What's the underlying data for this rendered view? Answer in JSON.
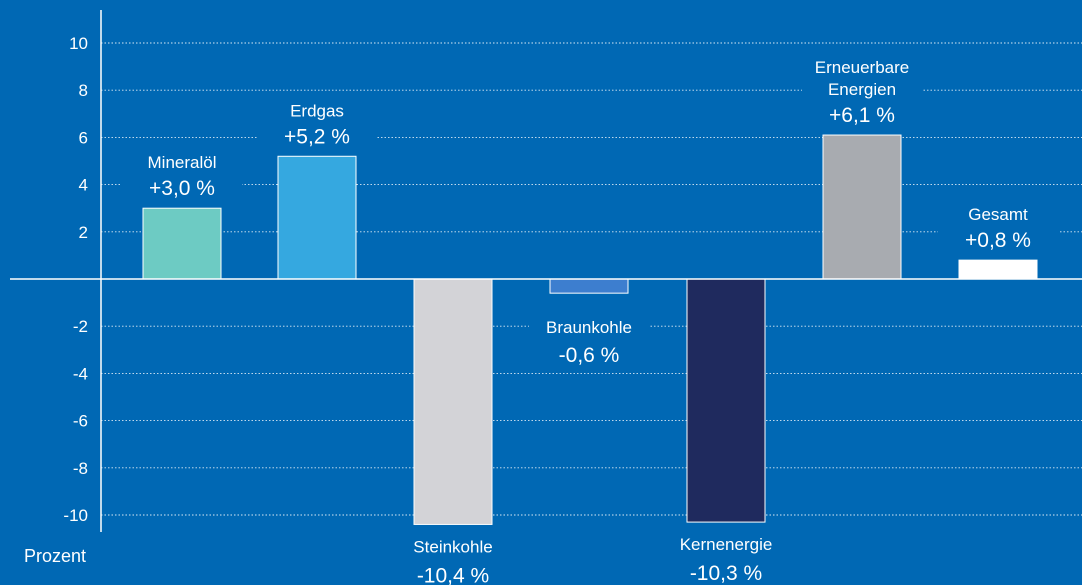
{
  "chart_data": {
    "type": "bar",
    "categories": [
      "Mineralöl",
      "Erdgas",
      "Steinkohle",
      "Braunkohle",
      "Kernenergie",
      "Erneuerbare Energien",
      "Gesamt"
    ],
    "category_lines": [
      [
        "Mineralöl"
      ],
      [
        "Erdgas"
      ],
      [
        "Steinkohle"
      ],
      [
        "Braunkohle"
      ],
      [
        "Kernenergie"
      ],
      [
        "Erneuerbare",
        "Energien"
      ],
      [
        "Gesamt"
      ]
    ],
    "values": [
      3.0,
      5.2,
      -10.4,
      -0.6,
      -10.3,
      6.1,
      0.8
    ],
    "value_labels": [
      "+3,0 %",
      "+5,2 %",
      "-10,4 %",
      "-0,6 %",
      "-10,3 %",
      "+6,1 %",
      "+0,8 %"
    ],
    "colors": [
      "#6dcbc3",
      "#35a8e0",
      "#d3d3d7",
      "#3d7ecf",
      "#1f2a5e",
      "#a8abb0",
      "#ffffff"
    ],
    "ylabel": "Prozent",
    "yticks": [
      10,
      8,
      6,
      4,
      2,
      -2,
      -4,
      -6,
      -8,
      -10
    ],
    "ylim": [
      -10.5,
      10.5
    ],
    "grid": true,
    "background": "#0068b4",
    "axis_color": "#ffffff"
  }
}
